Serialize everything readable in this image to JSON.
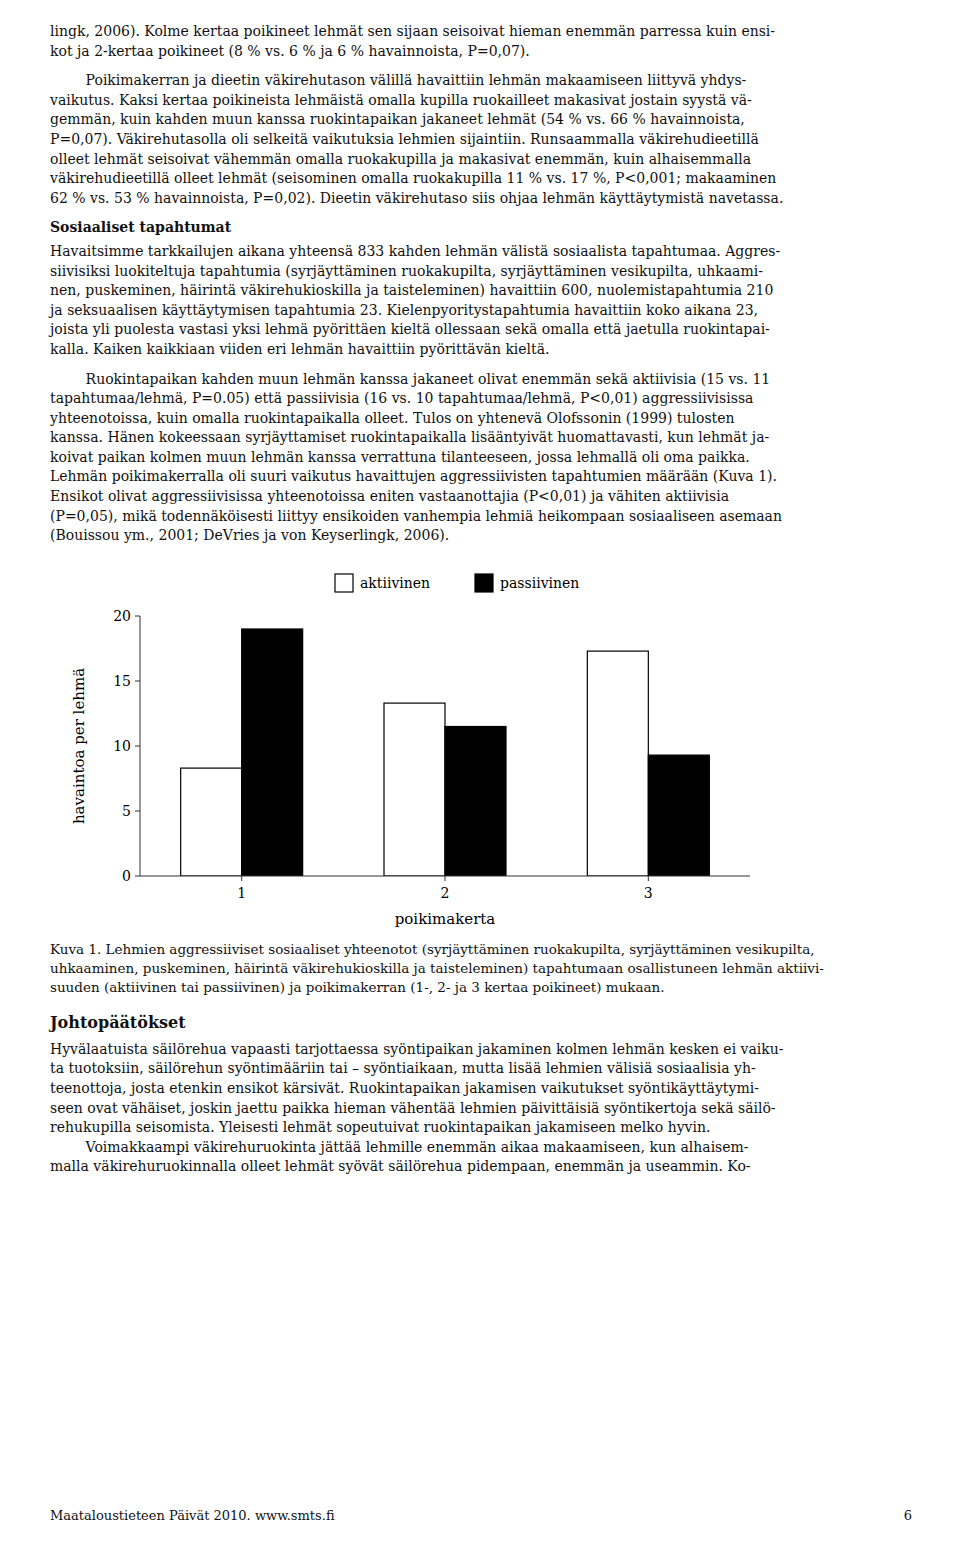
{
  "page": {
    "blocks_above": [
      {
        "kind": "paragraph",
        "text": "lingk, 2006). Kolme kertaa poikineet lehmät sen sijaan seisoivat hieman enemmän parressa kuin ensi-\nkot ja 2-kertaa poikineet (8 % vs. 6 % ja 6 % havainnoista, P=0,07)."
      },
      {
        "kind": "paragraph",
        "text": "        Poikimakerran ja dieetin väkirehutason välillä havaittiin lehmän makaamiseen liittyvä yhdys-\nvaikutus. Kaksi kertaa poikineista lehmäistä omalla kupilla ruokailleet makasivat jostain syystä vä-\ngemmän, kuin kahden muun kanssa ruokintapaikan jakaneet lehmät (54 % vs. 66 % havainnoista,\nP=0,07). Väkirehutasolla oli selkeitä vaikutuksia lehmien sijaintiin. Runsaammalla väkirehudieetillä\nolleet lehmät seisoivat vähemmän omalla ruokakupilla ja makasivat enemmän, kuin alhaisemmalla\nväkirehudieetillä olleet lehmät (seisominen omalla ruokakupilla 11 % vs. 17 %, P<0,001; makaaminen\n62 % vs. 53 % havainnoista, P=0,02). Dieetin väkirehutaso siis ohjaa lehmän käyttäytymistä navetassa."
      },
      {
        "kind": "heading",
        "text": "Sosiaaliset tapahtumat"
      },
      {
        "kind": "paragraph",
        "text": "Havaitsimme tarkkailujen aikana yhteensä 833 kahden lehmän välistä sosiaalista tapahtumaa. Aggres-\nsiivisiksi luokiteltuja tapahtumia (syrjäyttäminen ruokakupilta, syrjäyttäminen vesikupilta, uhkaami-\nnen, puskeminen, häirintä väkirehukioskilla ja taisteleminen) havaittiin 600, nuolemistapahtumia 210\nja seksuaalisen käyttäytymisen tapahtumia 23. Kielenpyoritystapahtumia havaittiin koko aikana 23,\njoista yli puolesta vastasi yksi lehmä pyörittäen kieltä ollessaan sekä omalla että jaetulla ruokintapai-\nkalla. Kaiken kaikkiaan viiden eri lehmän havaittiin pyörittävän kieltä."
      },
      {
        "kind": "paragraph",
        "text": "        Ruokintapaikan kahden muun lehmän kanssa jakaneet olivat enemmän sekä aktiivisia (15 vs. 11\ntapahtumaa/lehmä, P=0.05) että passiivisia (16 vs. 10 tapahtumaa/lehmä, P<0,01) aggressiivisissa\nyhteenotoissa, kuin omalla ruokintapaikalla olleet. Tulos on yhtenevä Olofssonin (1999) tulosten\nkanssa. Hänen kokeessaan syrjäyttamiset ruokintapaikalla lisääntyivät huomattavasti, kun lehmät ja-\nkoivat paikan kolmen muun lehmän kanssa verrattuna tilanteeseen, jossa lehmallä oli oma paikka.\nLehmän poikimakerralla oli suuri vaikutus havaittujen aggressiivisten tapahtumien määrään (Kuva 1).\nEnsikot olivat aggressiivisissa yhteenotoissa eniten vastaanottajia (P<0,01) ja vähiten aktiivisia\n(P=0,05), mikä todennäköisesti liittyy ensikoiden vanhempia lehmiä heikompaan sosiaaliseen asemaan\n(Bouissou ym., 2001; DeVries ja von Keyserlingk, 2006)."
      }
    ],
    "caption": "Kuva 1. Lehmien aggressiiviset sosiaaliset yhteenotot (syrjäyttäminen ruokakupilta, syrjäyttäminen vesikupilta,\nuhkaaminen, puskeminen, häirintä väkirehukioskilla ja taisteleminen) tapahtumaan osallistuneen lehmän aktiivi-\nsuuden (aktiivinen tai passiivinen) ja poikimakerran (1-, 2- ja 3 kertaa poikineet) mukaan.",
    "section_title": "Johtopäätökset",
    "conclusion": "Hyvälaatuista säilörehua vapaasti tarjottaessa syöntipaikan jakaminen kolmen lehmän kesken ei vaiku-\nta tuotoksiin, säilörehun syöntimääriin tai – syöntiaikaan, mutta lisää lehmien välisiä sosiaalisia yh-\nteenottoja, josta etenkin ensikot kärsivät. Ruokintapaikan jakamisen vaikutukset syöntikäyttäytymi-\nseen ovat vähäiset, joskin jaettu paikka hieman vähentää lehmien päivittäisiä syöntikertoja sekä säilö-\nrehukupilla seisomista. Yleisesti lehmät sopeutuivat ruokintapaikan jakamiseen melko hyvin.\n        Voimakkaampi väkirehuruokinta jättää lehmille enemmän aikaa makaamiseen, kun alhaisem-\nmalla väkirehuruokinnalla olleet lehmät syövät säilörehua pidempaan, enemmän ja useammin. Ko-",
    "footer_text": "Maataloustieteen Päivät 2010. www.smts.fi",
    "footer_page": "6"
  },
  "chart_data": {
    "type": "bar",
    "x_label": "poikimakerta",
    "y_label": "havaintoa per lehmä",
    "categories": [
      "1",
      "2",
      "3"
    ],
    "series": [
      {
        "name": "aktiivinen",
        "color": "#ffffff",
        "values": [
          8.3,
          13.3,
          17.3
        ]
      },
      {
        "name": "passiivinen",
        "color": "#000000",
        "values": [
          19.0,
          11.5,
          9.3
        ]
      }
    ],
    "ylim": [
      0,
      20
    ],
    "yticks": [
      0,
      5,
      10,
      15,
      20
    ],
    "grid": false,
    "legend": "top"
  }
}
